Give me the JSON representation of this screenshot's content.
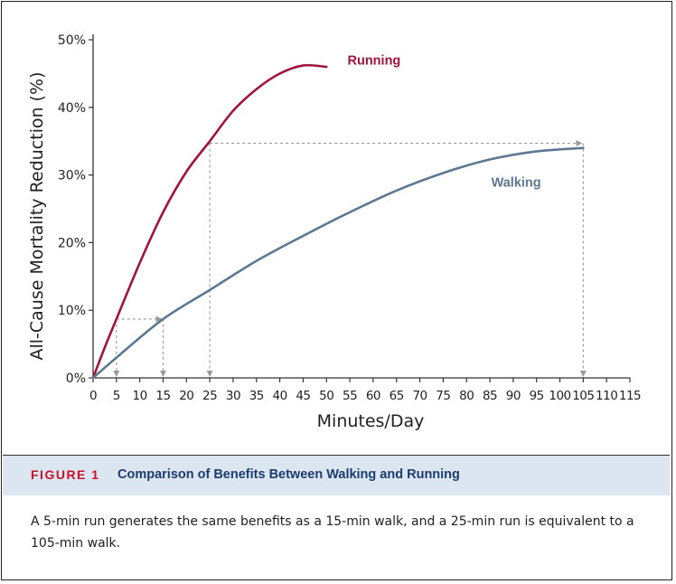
{
  "chart_data": {
    "type": "line",
    "xlabel": "Minutes/Day",
    "ylabel": "All-Cause Mortality Reduction (%)",
    "xlim": [
      0,
      115
    ],
    "ylim": [
      0,
      50
    ],
    "x_ticks": [
      0,
      5,
      10,
      15,
      20,
      25,
      30,
      35,
      40,
      45,
      50,
      55,
      60,
      65,
      70,
      75,
      80,
      85,
      90,
      95,
      100,
      105,
      110,
      115
    ],
    "y_ticks": [
      0,
      10,
      20,
      30,
      40,
      50
    ],
    "y_tick_labels": [
      "0%",
      "10%",
      "20%",
      "30%",
      "40%",
      "50%"
    ],
    "series": [
      {
        "name": "Running",
        "color": "#a3133f",
        "x": [
          0,
          2.5,
          5,
          10,
          15,
          20,
          25,
          30,
          35,
          40,
          45,
          50
        ],
        "y": [
          0,
          4.5,
          8.7,
          17,
          24.5,
          30.5,
          35,
          39.5,
          42.7,
          45,
          46.2,
          46
        ]
      },
      {
        "name": "Walking",
        "color": "#5d7890",
        "x": [
          0,
          5,
          15,
          25,
          35,
          45,
          55,
          65,
          75,
          85,
          95,
          105
        ],
        "y": [
          0,
          3,
          8.7,
          13,
          17.3,
          21,
          24.5,
          27.7,
          30.3,
          32.3,
          33.5,
          34
        ]
      }
    ],
    "annotations": [
      {
        "type": "equivalence",
        "run_minutes": 5,
        "walk_minutes": 15,
        "y": 8.7
      },
      {
        "type": "equivalence",
        "run_minutes": 25,
        "walk_minutes": 105,
        "y": 34.7
      }
    ]
  },
  "caption": {
    "label": "FIGURE 1",
    "title": "Comparison of Benefits Between Walking and Running",
    "body": "A 5-min run generates the same benefits as a 15-min walk, and a 25-min run is equivalent to a 105-min walk."
  },
  "colors": {
    "running": "#a3133f",
    "walking": "#5d7890",
    "guide": "#999999",
    "caption_bg": "#dce6f0",
    "caption_label": "#c8102e",
    "caption_title": "#1c3c6e"
  }
}
